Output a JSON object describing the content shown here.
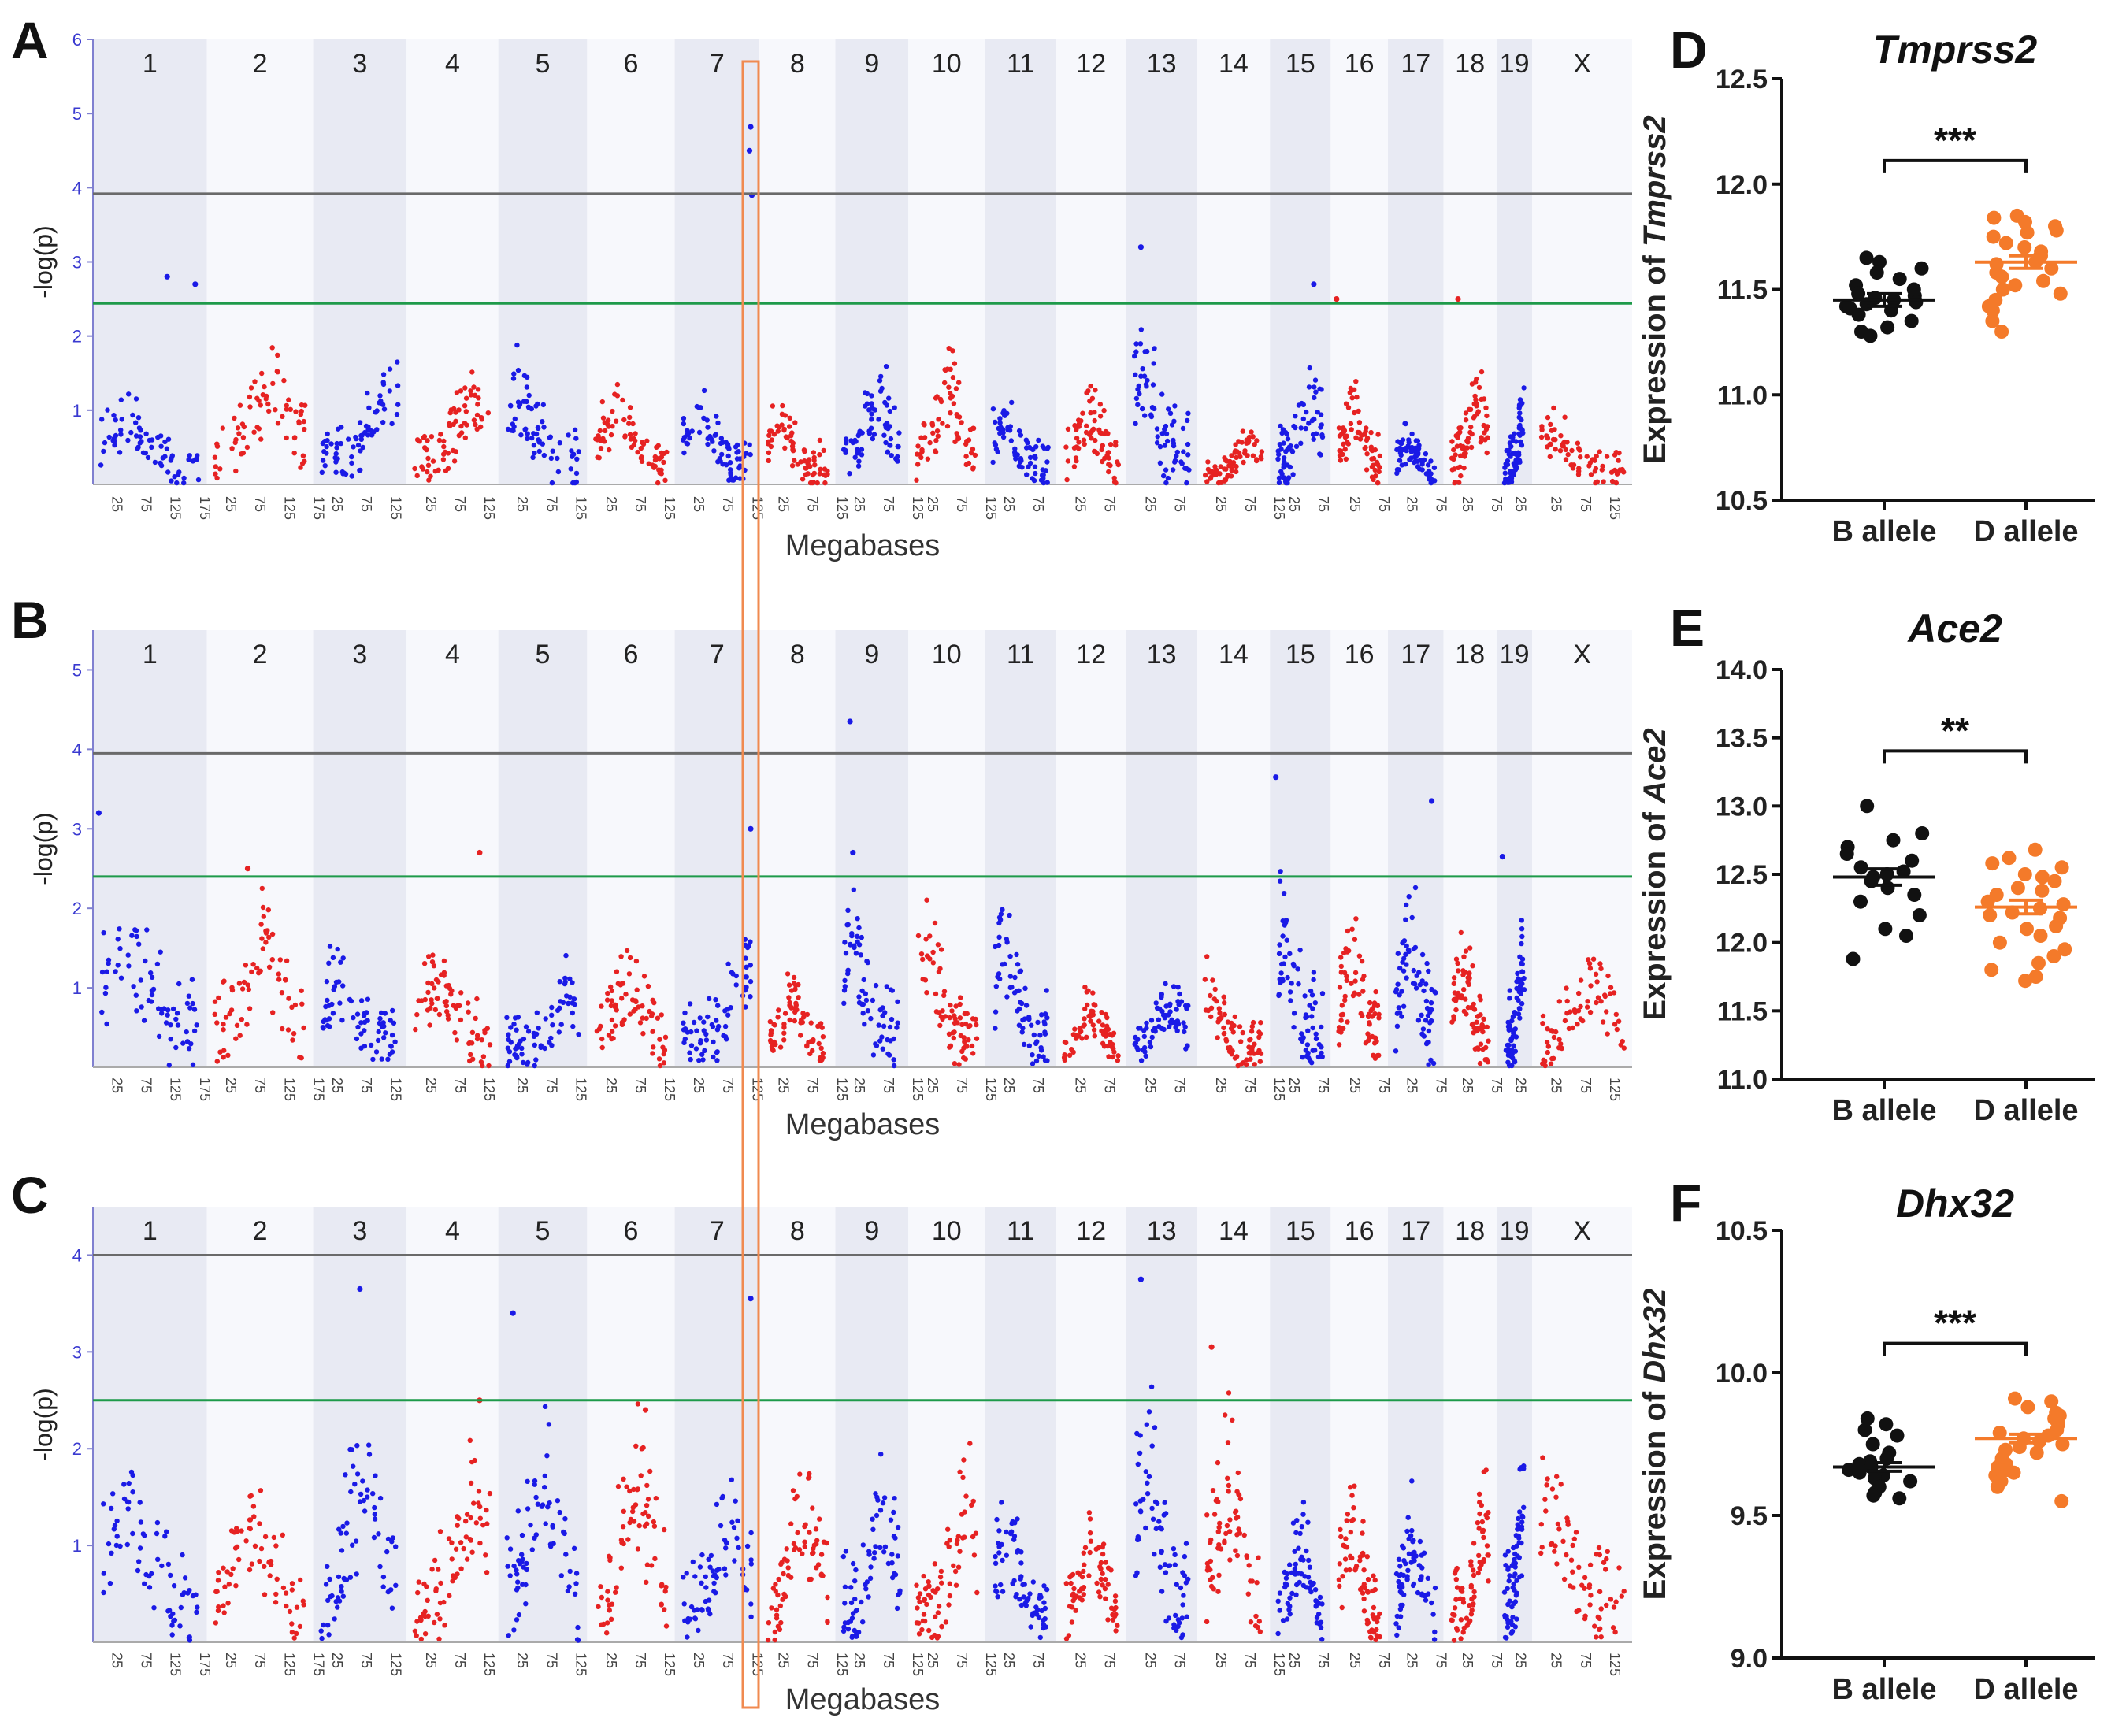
{
  "figure": {
    "colors": {
      "blue": "#1a1ae6",
      "red": "#e62222",
      "black": "#111111",
      "orange": "#f47a2a",
      "green_line": "#1e9a4a",
      "gray_line": "#6a6a6a",
      "highlight": "#f08a50",
      "band_dark": "#e8eaf3",
      "band_light": "#f7f8fc"
    }
  },
  "chart_data": [
    {
      "type": "scatter",
      "panel": "A",
      "subtype": "manhattan",
      "title": "",
      "xlabel": "Megabases",
      "ylabel": "-log(p)",
      "ylim": [
        0,
        6
      ],
      "yticks": [
        "1",
        "2",
        "3",
        "4",
        "5",
        "6"
      ],
      "significant_threshold": 3.92,
      "suggestive_threshold": 2.44,
      "chromosomes": [
        "1",
        "2",
        "3",
        "4",
        "5",
        "6",
        "7",
        "8",
        "9",
        "10",
        "11",
        "12",
        "13",
        "14",
        "15",
        "16",
        "17",
        "18",
        "19",
        "X"
      ],
      "chromosome_lengths_mb": [
        195,
        182,
        160,
        157,
        152,
        150,
        145,
        130,
        125,
        131,
        122,
        120,
        121,
        125,
        104,
        98,
        95,
        91,
        61,
        171
      ],
      "xtick_labels": [
        "25",
        "75",
        "125",
        "175"
      ],
      "highlight_chromosome": "7",
      "peaks": [
        {
          "chr": "1",
          "pos": 127,
          "value": 2.8
        },
        {
          "chr": "1",
          "pos": 175,
          "value": 2.7
        },
        {
          "chr": "7",
          "pos": 130,
          "value": 4.82
        },
        {
          "chr": "7",
          "pos": 128,
          "value": 4.5
        },
        {
          "chr": "7",
          "pos": 132,
          "value": 3.9
        },
        {
          "chr": "13",
          "pos": 25,
          "value": 3.2
        },
        {
          "chr": "15",
          "pos": 75,
          "value": 2.7
        },
        {
          "chr": "18",
          "pos": 25,
          "value": 2.5
        },
        {
          "chr": "16",
          "pos": 10,
          "value": 2.5
        }
      ],
      "peak_profile": [
        1.4,
        2.0,
        1.8,
        1.7,
        1.8,
        1.6,
        1.5,
        1.2,
        1.8,
        1.8,
        1.3,
        1.4,
        2.5,
        0.8,
        1.8,
        1.6,
        0.9,
        1.8,
        1.4,
        1.1
      ]
    },
    {
      "type": "scatter",
      "panel": "B",
      "subtype": "manhattan",
      "title": "",
      "xlabel": "Megabases",
      "ylabel": "-log(p)",
      "ylim": [
        0,
        5.5
      ],
      "yticks": [
        "1",
        "2",
        "3",
        "4",
        "5"
      ],
      "significant_threshold": 3.95,
      "suggestive_threshold": 2.4,
      "chromosomes": [
        "1",
        "2",
        "3",
        "4",
        "5",
        "6",
        "7",
        "8",
        "9",
        "10",
        "11",
        "12",
        "13",
        "14",
        "15",
        "16",
        "17",
        "18",
        "19",
        "X"
      ],
      "chromosome_lengths_mb": [
        195,
        182,
        160,
        157,
        152,
        150,
        145,
        130,
        125,
        131,
        122,
        120,
        121,
        125,
        104,
        98,
        95,
        91,
        61,
        171
      ],
      "xtick_labels": [
        "25",
        "75",
        "125",
        "175"
      ],
      "peaks": [
        {
          "chr": "1",
          "pos": 10,
          "value": 3.2
        },
        {
          "chr": "2",
          "pos": 70,
          "value": 2.5
        },
        {
          "chr": "4",
          "pos": 125,
          "value": 2.7
        },
        {
          "chr": "7",
          "pos": 130,
          "value": 3.0
        },
        {
          "chr": "9",
          "pos": 25,
          "value": 4.35
        },
        {
          "chr": "9",
          "pos": 30,
          "value": 2.7
        },
        {
          "chr": "15",
          "pos": 10,
          "value": 3.65
        },
        {
          "chr": "17",
          "pos": 75,
          "value": 3.35
        },
        {
          "chr": "19",
          "pos": 10,
          "value": 2.65
        }
      ],
      "peak_profile": [
        2.5,
        2.3,
        1.7,
        1.8,
        1.5,
        1.6,
        2.0,
        1.2,
        2.5,
        2.1,
        2.2,
        1.1,
        1.3,
        1.4,
        2.8,
        2.3,
        2.6,
        2.0,
        2.1,
        1.7
      ]
    },
    {
      "type": "scatter",
      "panel": "C",
      "subtype": "manhattan",
      "title": "",
      "xlabel": "Megabases",
      "ylabel": "-log(p)",
      "ylim": [
        0,
        4.5
      ],
      "yticks": [
        "1",
        "2",
        "3",
        "4"
      ],
      "significant_threshold": 4.0,
      "suggestive_threshold": 2.5,
      "chromosomes": [
        "1",
        "2",
        "3",
        "4",
        "5",
        "6",
        "7",
        "8",
        "9",
        "10",
        "11",
        "12",
        "13",
        "14",
        "15",
        "16",
        "17",
        "18",
        "19",
        "X"
      ],
      "chromosome_lengths_mb": [
        195,
        182,
        160,
        157,
        152,
        150,
        145,
        130,
        125,
        131,
        122,
        120,
        121,
        125,
        104,
        98,
        95,
        91,
        61,
        171
      ],
      "xtick_labels": [
        "25",
        "75",
        "125",
        "175"
      ],
      "peaks": [
        {
          "chr": "3",
          "pos": 80,
          "value": 3.65
        },
        {
          "chr": "5",
          "pos": 25,
          "value": 3.4
        },
        {
          "chr": "7",
          "pos": 130,
          "value": 3.55
        },
        {
          "chr": "13",
          "pos": 25,
          "value": 3.75
        },
        {
          "chr": "14",
          "pos": 25,
          "value": 3.05
        },
        {
          "chr": "4",
          "pos": 125,
          "value": 2.5
        },
        {
          "chr": "6",
          "pos": 100,
          "value": 2.4
        }
      ],
      "peak_profile": [
        2.2,
        1.8,
        2.6,
        2.3,
        2.6,
        2.4,
        1.8,
        2.1,
        2.2,
        2.0,
        1.6,
        1.5,
        3.0,
        2.5,
        1.5,
        1.8,
        1.6,
        2.0,
        2.2,
        2.1
      ]
    },
    {
      "type": "scatter",
      "panel": "D",
      "subtype": "dot-plot",
      "title": "Tmprss2",
      "xlabel": "",
      "ylabel": "Expression of Tmprss2",
      "ylim": [
        10.5,
        12.5
      ],
      "yticks": [
        "10.5",
        "11.0",
        "11.5",
        "12.0",
        "12.5"
      ],
      "categories": [
        "B allele",
        "D allele"
      ],
      "series": [
        {
          "name": "B allele",
          "mean": 11.45,
          "sem": 0.03,
          "values": [
            11.65,
            11.63,
            11.6,
            11.58,
            11.55,
            11.52,
            11.5,
            11.48,
            11.47,
            11.46,
            11.45,
            11.44,
            11.43,
            11.42,
            11.41,
            11.4,
            11.38,
            11.35,
            11.32,
            11.3,
            11.28
          ]
        },
        {
          "name": "D allele",
          "mean": 11.63,
          "sem": 0.03,
          "values": [
            11.85,
            11.84,
            11.82,
            11.8,
            11.78,
            11.77,
            11.75,
            11.72,
            11.7,
            11.68,
            11.66,
            11.65,
            11.63,
            11.62,
            11.6,
            11.58,
            11.56,
            11.54,
            11.52,
            11.5,
            11.48,
            11.45,
            11.42,
            11.4,
            11.35,
            11.3
          ]
        }
      ],
      "significance": "***"
    },
    {
      "type": "scatter",
      "panel": "E",
      "subtype": "dot-plot",
      "title": "Ace2",
      "xlabel": "",
      "ylabel": "Expression of Ace2",
      "ylim": [
        11.0,
        14.0
      ],
      "yticks": [
        "11.0",
        "11.5",
        "12.0",
        "12.5",
        "13.0",
        "13.5",
        "14.0"
      ],
      "categories": [
        "B allele",
        "D allele"
      ],
      "series": [
        {
          "name": "B allele",
          "mean": 12.48,
          "sem": 0.06,
          "values": [
            13.0,
            12.8,
            12.75,
            12.7,
            12.65,
            12.6,
            12.55,
            12.52,
            12.5,
            12.48,
            12.45,
            12.4,
            12.35,
            12.3,
            12.2,
            12.1,
            12.05,
            11.88
          ]
        },
        {
          "name": "D allele",
          "mean": 12.26,
          "sem": 0.05,
          "values": [
            12.68,
            12.62,
            12.58,
            12.55,
            12.5,
            12.48,
            12.45,
            12.4,
            12.38,
            12.35,
            12.3,
            12.28,
            12.25,
            12.22,
            12.2,
            12.18,
            12.12,
            12.1,
            12.05,
            12.0,
            11.95,
            11.9,
            11.85,
            11.8,
            11.75,
            11.72
          ]
        }
      ],
      "significance": "**"
    },
    {
      "type": "scatter",
      "panel": "F",
      "subtype": "dot-plot",
      "title": "Dhx32",
      "xlabel": "",
      "ylabel": "Expression of Dhx32",
      "ylim": [
        9.0,
        10.5
      ],
      "yticks": [
        "9.0",
        "9.5",
        "10.0",
        "10.5"
      ],
      "categories": [
        "B allele",
        "D allele"
      ],
      "series": [
        {
          "name": "B allele",
          "mean": 9.67,
          "sem": 0.015,
          "values": [
            9.84,
            9.82,
            9.8,
            9.78,
            9.75,
            9.72,
            9.7,
            9.69,
            9.68,
            9.67,
            9.66,
            9.65,
            9.64,
            9.63,
            9.62,
            9.6,
            9.58,
            9.57,
            9.56
          ]
        },
        {
          "name": "D allele",
          "mean": 9.77,
          "sem": 0.015,
          "values": [
            9.91,
            9.9,
            9.88,
            9.86,
            9.85,
            9.84,
            9.82,
            9.8,
            9.79,
            9.78,
            9.77,
            9.76,
            9.75,
            9.74,
            9.73,
            9.72,
            9.7,
            9.68,
            9.67,
            9.66,
            9.65,
            9.64,
            9.62,
            9.6,
            9.55
          ]
        }
      ],
      "significance": "***"
    }
  ],
  "panel_labels": [
    "A",
    "B",
    "C",
    "D",
    "E",
    "F"
  ]
}
